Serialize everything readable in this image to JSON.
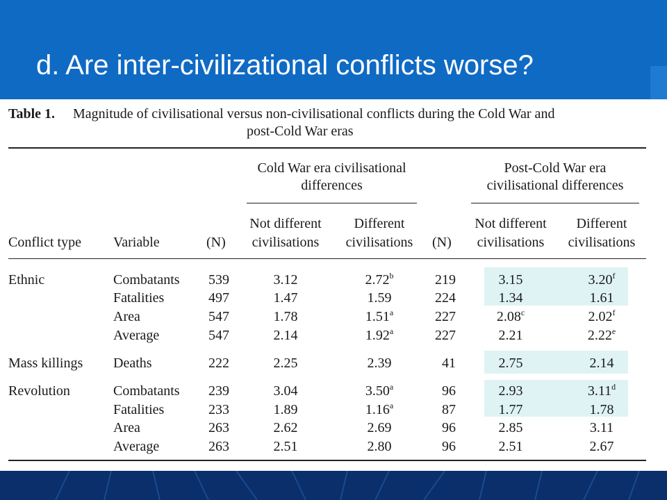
{
  "slide": {
    "title": "d. Are inter-civilizational conflicts worse?"
  },
  "table": {
    "label": "Table 1.",
    "caption_line1": "Magnitude of civilisational versus non-civilisational conflicts during the Cold War and",
    "caption_line2": "post-Cold War eras",
    "group1": {
      "line1": "Cold War era civilisational",
      "line2": "differences"
    },
    "group2": {
      "line1": "Post-Cold War era",
      "line2": "civilisational differences"
    },
    "headers": {
      "conflict_type": "Conflict type",
      "variable": "Variable",
      "n": "(N)",
      "not_different_1": "Not different",
      "not_different_2": "civilisations",
      "different_1": "Different",
      "different_2": "civilisations"
    },
    "rows": [
      {
        "type": "Ethnic",
        "variable": "Combatants",
        "n1": "539",
        "cw_nd": "3.12",
        "cw_d": "2.72",
        "cw_d_sup": "b",
        "n2": "219",
        "pcw_nd": "3.15",
        "pcw_nd_sup": "",
        "pcw_d": "3.20",
        "pcw_d_sup": "f"
      },
      {
        "type": "",
        "variable": "Fatalities",
        "n1": "497",
        "cw_nd": "1.47",
        "cw_d": "1.59",
        "cw_d_sup": "",
        "n2": "224",
        "pcw_nd": "1.34",
        "pcw_nd_sup": "",
        "pcw_d": "1.61",
        "pcw_d_sup": ""
      },
      {
        "type": "",
        "variable": "Area",
        "n1": "547",
        "cw_nd": "1.78",
        "cw_d": "1.51",
        "cw_d_sup": "a",
        "n2": "227",
        "pcw_nd": "2.08",
        "pcw_nd_sup": "c",
        "pcw_d": "2.02",
        "pcw_d_sup": "f"
      },
      {
        "type": "",
        "variable": "Average",
        "n1": "547",
        "cw_nd": "2.14",
        "cw_d": "1.92",
        "cw_d_sup": "a",
        "n2": "227",
        "pcw_nd": "2.21",
        "pcw_nd_sup": "",
        "pcw_d": "2.22",
        "pcw_d_sup": "e"
      },
      {
        "type": "Mass killings",
        "variable": "Deaths",
        "n1": "222",
        "cw_nd": "2.25",
        "cw_d": "2.39",
        "cw_d_sup": "",
        "n2": "41",
        "pcw_nd": "2.75",
        "pcw_nd_sup": "",
        "pcw_d": "2.14",
        "pcw_d_sup": ""
      },
      {
        "type": "Revolution",
        "variable": "Combatants",
        "n1": "239",
        "cw_nd": "3.04",
        "cw_d": "3.50",
        "cw_d_sup": "a",
        "n2": "96",
        "pcw_nd": "2.93",
        "pcw_nd_sup": "",
        "pcw_d": "3.11",
        "pcw_d_sup": "d"
      },
      {
        "type": "",
        "variable": "Fatalities",
        "n1": "233",
        "cw_nd": "1.89",
        "cw_d": "1.16",
        "cw_d_sup": "a",
        "n2": "87",
        "pcw_nd": "1.77",
        "pcw_nd_sup": "",
        "pcw_d": "1.78",
        "pcw_d_sup": ""
      },
      {
        "type": "",
        "variable": "Area",
        "n1": "263",
        "cw_nd": "2.62",
        "cw_d": "2.69",
        "cw_d_sup": "",
        "n2": "96",
        "pcw_nd": "2.85",
        "pcw_nd_sup": "",
        "pcw_d": "3.11",
        "pcw_d_sup": ""
      },
      {
        "type": "",
        "variable": "Average",
        "n1": "263",
        "cw_nd": "2.51",
        "cw_d": "2.80",
        "cw_d_sup": "",
        "n2": "96",
        "pcw_nd": "2.51",
        "pcw_nd_sup": "",
        "pcw_d": "2.67",
        "pcw_d_sup": ""
      }
    ]
  },
  "colors": {
    "header_blue": "#0f6ac4",
    "footer_navy": "#0a2f6a",
    "highlight": "#dff3f4"
  }
}
